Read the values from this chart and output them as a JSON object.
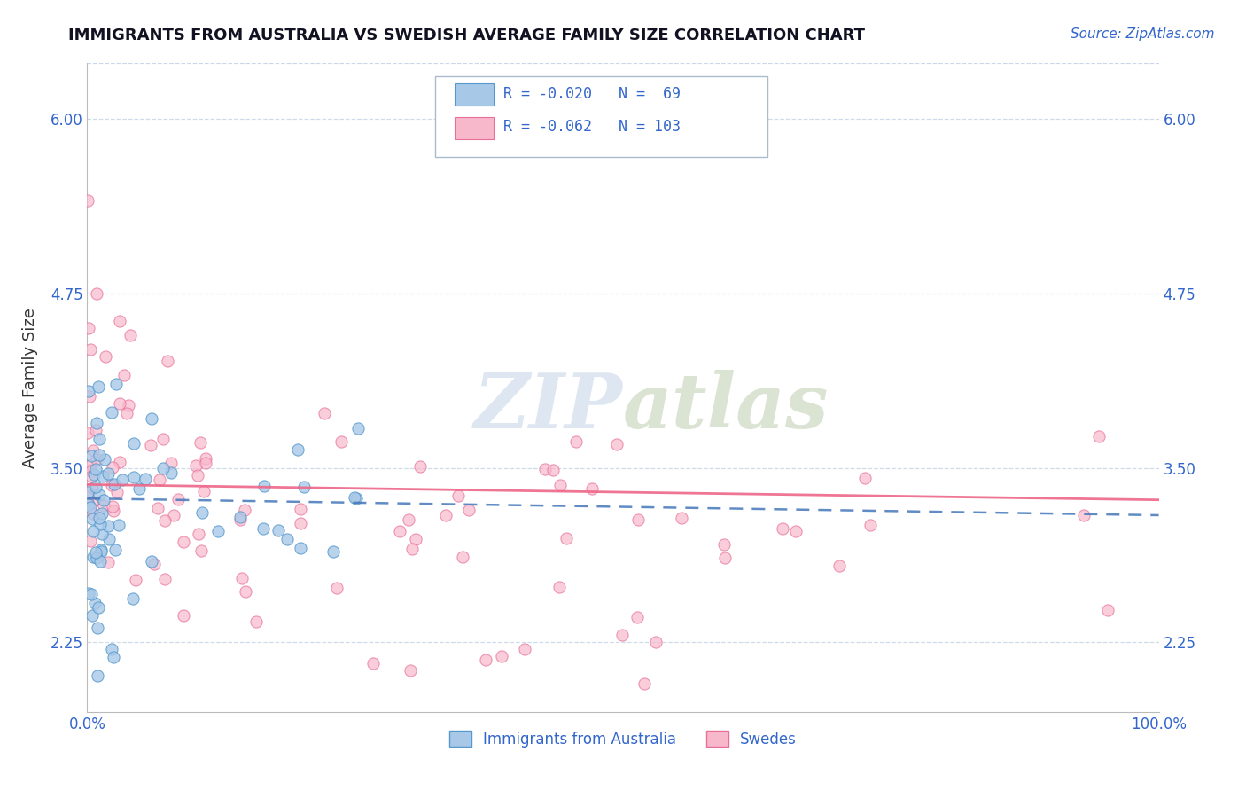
{
  "title": "IMMIGRANTS FROM AUSTRALIA VS SWEDISH AVERAGE FAMILY SIZE CORRELATION CHART",
  "source_text": "Source: ZipAtlas.com",
  "ylabel": "Average Family Size",
  "y_tick_values": [
    2.25,
    3.5,
    4.75,
    6.0
  ],
  "y_tick_labels": [
    "2.25",
    "3.50",
    "4.75",
    "6.00"
  ],
  "xlim": [
    0,
    1
  ],
  "ylim": [
    1.75,
    6.4
  ],
  "legend_line1": "R = -0.020   N =  69",
  "legend_line2": "R = -0.062   N = 103",
  "color_blue_fill": "#a8c8e8",
  "color_blue_edge": "#5599cc",
  "color_pink_fill": "#f8b8cc",
  "color_pink_edge": "#e87098",
  "trend_blue_color": "#4477bb",
  "trend_pink_color": "#ee6688",
  "watermark_color": "#c8d8e8",
  "legend_label1": "Immigrants from Australia",
  "legend_label2": "Swedes",
  "background_color": "#ffffff",
  "grid_color": "#c8d8e8",
  "title_color": "#111122",
  "axis_color": "#3366cc",
  "ylabel_color": "#333333"
}
